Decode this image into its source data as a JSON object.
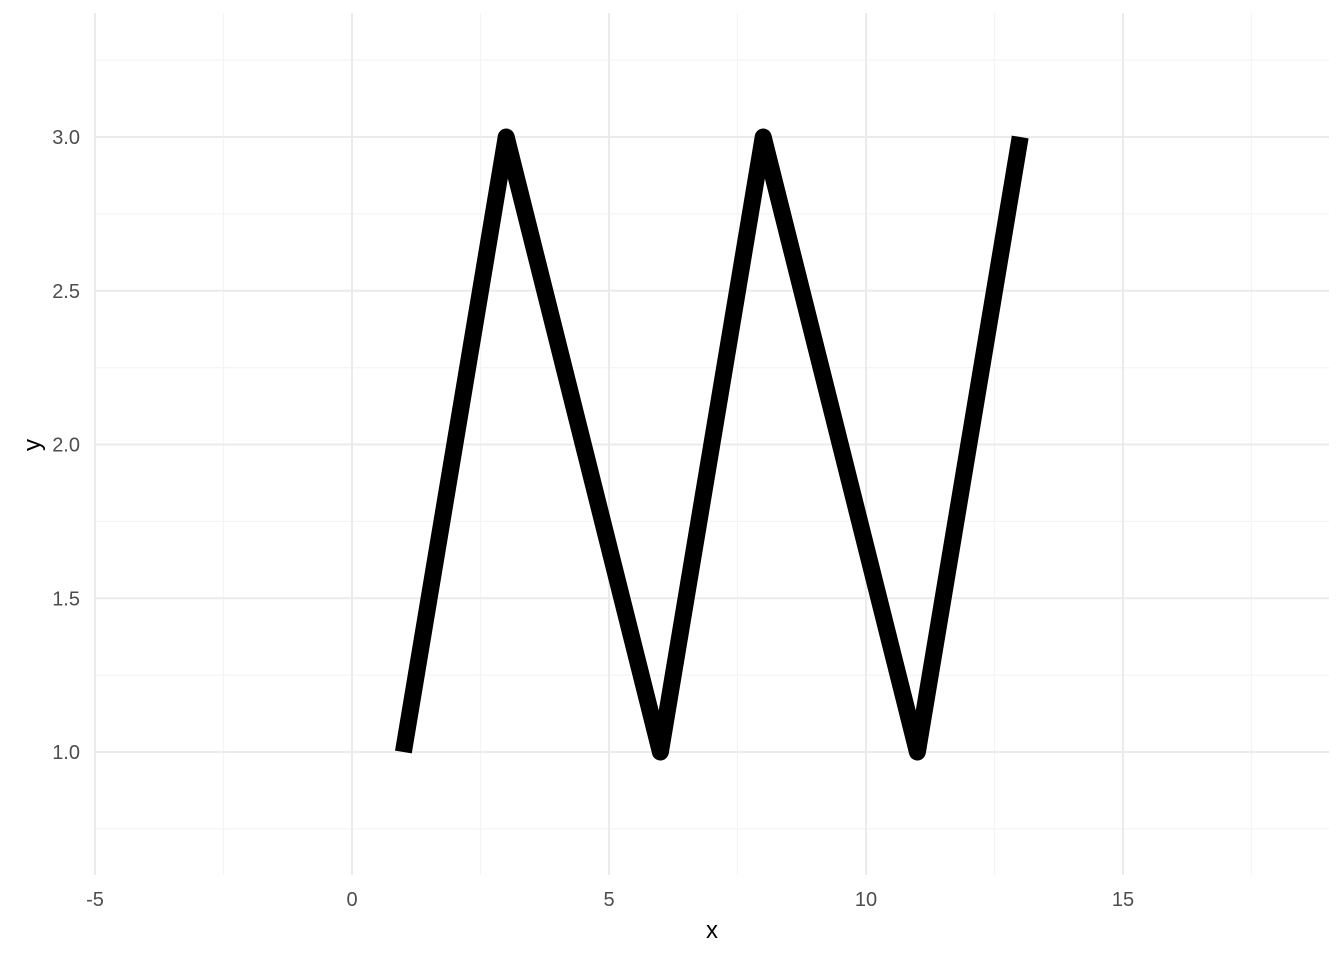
{
  "chart_data": {
    "type": "line",
    "title": "",
    "xlabel": "x",
    "ylabel": "y",
    "xlim": [
      -5,
      19
    ],
    "ylim": [
      0.75,
      3.25
    ],
    "x_ticks": [
      -5,
      0,
      5,
      10,
      15
    ],
    "x_tick_labels": [
      "-5",
      "0",
      "5",
      "10",
      "15"
    ],
    "y_ticks": [
      1.0,
      1.5,
      2.0,
      2.5,
      3.0
    ],
    "y_tick_labels": [
      "1.0",
      "1.5",
      "2.0",
      "2.5",
      "3.0"
    ],
    "grid": true,
    "legend": "none",
    "colors": {
      "line": "#000000",
      "grid_major": "#ebebeb",
      "grid_minor": "#f4f4f4",
      "tick_text": "#4d4d4d"
    },
    "series": [
      {
        "x": [
          1,
          3,
          6,
          8,
          11,
          13
        ],
        "y": [
          1,
          3,
          1,
          3,
          1,
          3
        ]
      }
    ]
  }
}
